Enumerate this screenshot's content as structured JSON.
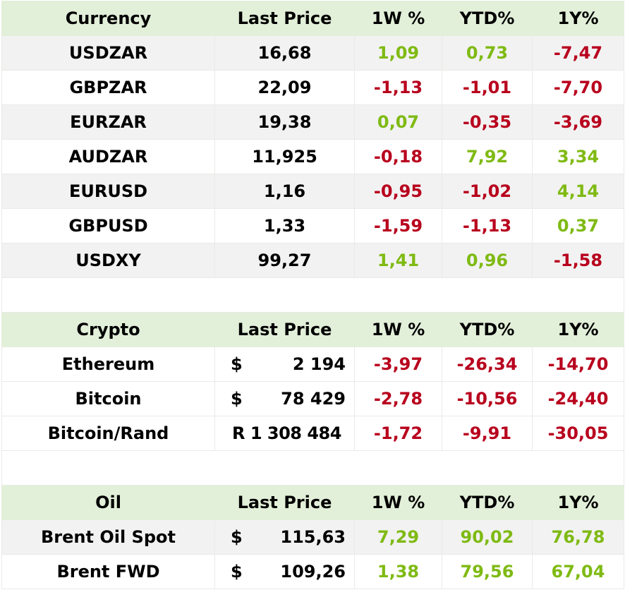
{
  "currency": {
    "headers": [
      "Currency",
      "Last Price",
      "1W %",
      "YTD%",
      "1Y%"
    ],
    "rows": [
      {
        "name": "USDZAR",
        "price": "16,68",
        "w1": "1,09",
        "ytd": "0,73",
        "y1": "-7,47"
      },
      {
        "name": "GBPZAR",
        "price": "22,09",
        "w1": "-1,13",
        "ytd": "-1,01",
        "y1": "-7,70"
      },
      {
        "name": "EURZAR",
        "price": "19,38",
        "w1": "0,07",
        "ytd": "-0,35",
        "y1": "-3,69"
      },
      {
        "name": "AUDZAR",
        "price": "11,925",
        "w1": "-0,18",
        "ytd": "7,92",
        "y1": "3,34"
      },
      {
        "name": "EURUSD",
        "price": "1,16",
        "w1": "-0,95",
        "ytd": "-1,02",
        "y1": "4,14"
      },
      {
        "name": "GBPUSD",
        "price": "1,33",
        "w1": "-1,59",
        "ytd": "-1,13",
        "y1": "0,37"
      },
      {
        "name": "USDXY",
        "price": "99,27",
        "w1": "1,41",
        "ytd": "0,96",
        "y1": "-1,58"
      }
    ]
  },
  "crypto": {
    "headers": [
      "Crypto",
      "Last Price",
      "1W %",
      "YTD%",
      "1Y%"
    ],
    "rows": [
      {
        "name": "Ethereum",
        "symbol": "$",
        "amount": "2 194",
        "w1": "-3,97",
        "ytd": "-26,34",
        "y1": "-14,70"
      },
      {
        "name": "Bitcoin",
        "symbol": "$",
        "amount": "78 429",
        "w1": "-2,78",
        "ytd": "-10,56",
        "y1": "-24,40"
      },
      {
        "name": "Bitcoin/Rand",
        "price": "R 1 308 484",
        "w1": "-1,72",
        "ytd": "-9,91",
        "y1": "-30,05"
      }
    ]
  },
  "oil": {
    "headers": [
      "Oil",
      "Last Price",
      "1W %",
      "YTD%",
      "1Y%"
    ],
    "rows": [
      {
        "name": "Brent Oil Spot",
        "symbol": "$",
        "amount": "115,63",
        "w1": "7,29",
        "ytd": "90,02",
        "y1": "76,78"
      },
      {
        "name": "Brent FWD",
        "symbol": "$",
        "amount": "109,26",
        "w1": "1,38",
        "ytd": "79,56",
        "y1": "67,04"
      }
    ]
  },
  "colors": {
    "header_bg": "#e2efd9",
    "row_alt_bg": "#f2f2f2",
    "positive": "#7fba13",
    "negative": "#b8001d"
  }
}
